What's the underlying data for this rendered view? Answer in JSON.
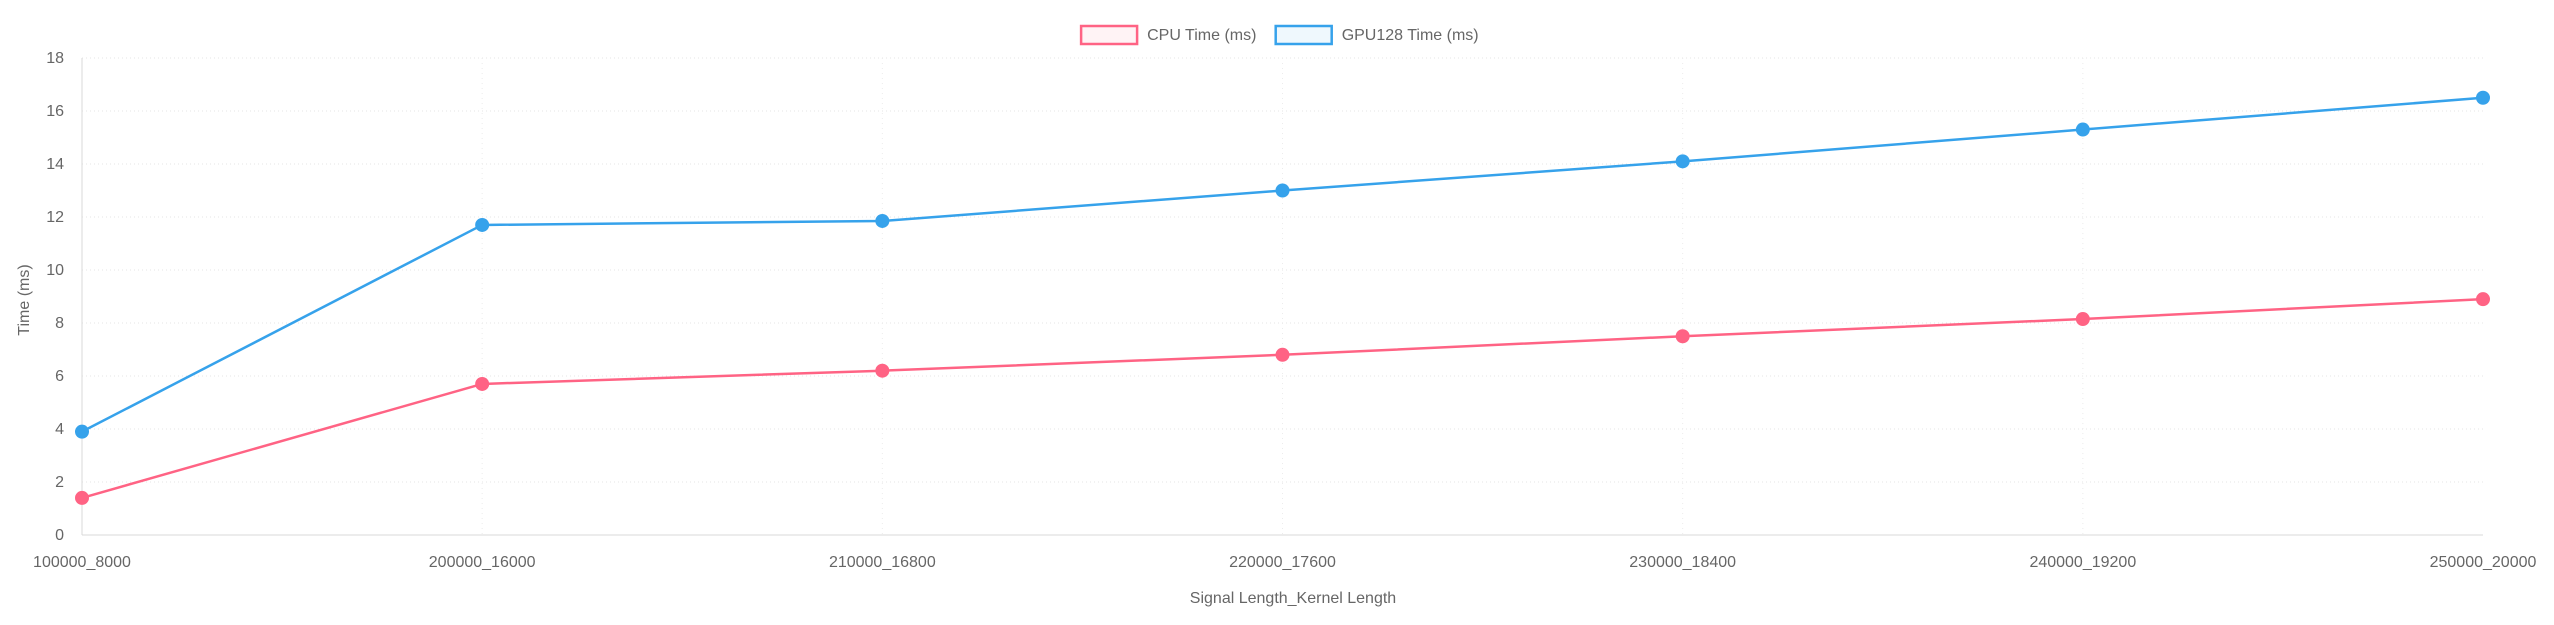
{
  "chart_data": {
    "type": "line",
    "title": "",
    "xlabel": "Signal Length_Kernel Length",
    "ylabel": "Time (ms)",
    "categories": [
      "100000_8000",
      "200000_16000",
      "210000_16800",
      "220000_17600",
      "230000_18400",
      "240000_19200",
      "250000_20000"
    ],
    "ylim": [
      0,
      18
    ],
    "yticks": [
      0,
      2,
      4,
      6,
      8,
      10,
      12,
      14,
      16,
      18
    ],
    "grid": true,
    "legend_position": "top-center",
    "series": [
      {
        "name": "CPU Time (ms)",
        "color": "#ff6384",
        "values": [
          1.4,
          5.7,
          6.2,
          6.8,
          7.5,
          8.15,
          8.9
        ]
      },
      {
        "name": "GPU128 Time (ms)",
        "color": "#36a2eb",
        "values": [
          3.9,
          11.7,
          11.85,
          13.0,
          14.1,
          15.3,
          16.5
        ]
      }
    ]
  }
}
